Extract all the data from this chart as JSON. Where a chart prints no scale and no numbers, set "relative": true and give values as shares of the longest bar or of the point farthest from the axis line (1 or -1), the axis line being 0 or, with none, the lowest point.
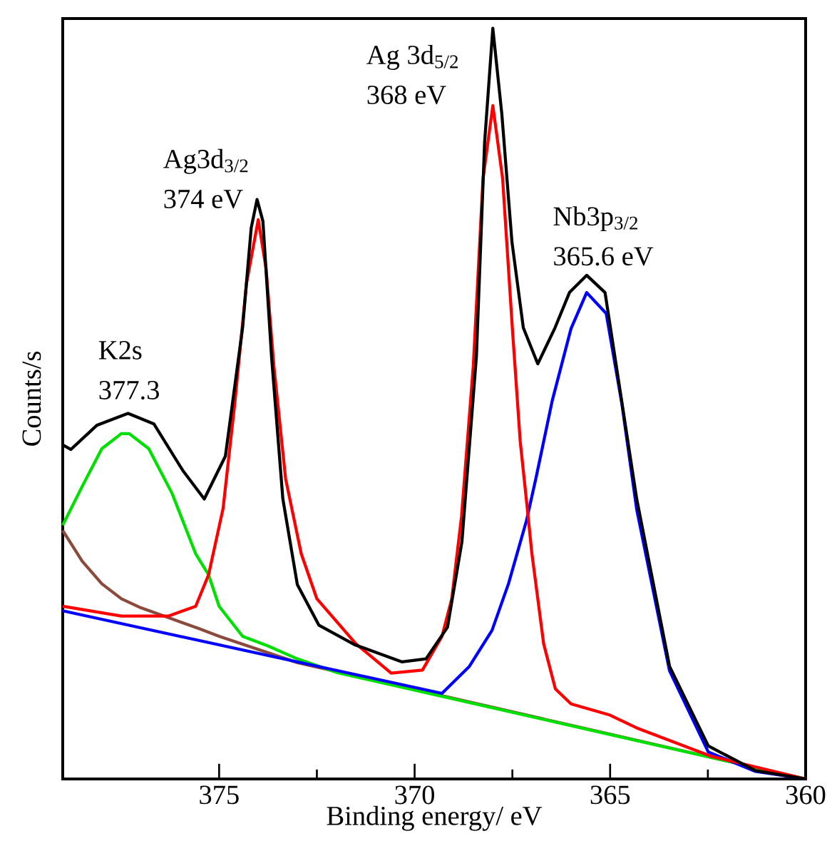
{
  "chart_data": {
    "type": "line",
    "relative": true,
    "xlabel": "Binding energy/ eV",
    "ylabel": "Counts/s",
    "xlim": [
      379,
      360
    ],
    "xticks": [
      375,
      370,
      365,
      360
    ],
    "annotations": [
      {
        "text": "K2s",
        "x": 377.3,
        "y": 0.487
      },
      {
        "text": "377.3",
        "x": 377.3,
        "y": 0.487
      },
      {
        "text": "Ag3d$_{3/2}$",
        "x": 374.0,
        "y": 0.772
      },
      {
        "text": "374 eV",
        "x": 374.0,
        "y": 0.772
      },
      {
        "text": "Ag 3d$_{5/2}$",
        "x": 368.0,
        "y": 1
      },
      {
        "text": "368 eV",
        "x": 368.0,
        "y": 1
      },
      {
        "text": "Nb3p$_{3/2}$",
        "x": 365.6,
        "y": 0.671
      },
      {
        "text": "365.6 eV",
        "x": 365.6,
        "y": 0.671
      }
    ],
    "series": [
      {
        "color": "#8b4a3c",
        "x": [
          379,
          378.5,
          378,
          377.5,
          377,
          376.3,
          375.5,
          375,
          373,
          360
        ],
        "values": [
          0.331,
          0.29,
          0.26,
          0.24,
          0.228,
          0.215,
          0.2,
          0.19,
          0.155,
          0
        ]
      },
      {
        "color": "#00e000",
        "x": [
          379,
          378.5,
          378,
          377.5,
          377.3,
          376.8,
          376.2,
          375.6,
          375.27,
          375.0,
          374.4,
          373.74,
          373.0,
          372,
          360
        ],
        "values": [
          0.338,
          0.39,
          0.44,
          0.46,
          0.46,
          0.44,
          0.38,
          0.3,
          0.272,
          0.23,
          0.19,
          0.177,
          0.16,
          0.142,
          0
        ]
      },
      {
        "color": "#0000ff",
        "x": [
          379,
          369.3,
          368.6,
          368.02,
          367.6,
          367.14,
          366.9,
          366.48,
          366.0,
          365.6,
          365.1,
          364.7,
          364.32,
          363.48,
          362.49,
          361.28,
          360
        ],
        "values": [
          0.224,
          0.114,
          0.15,
          0.198,
          0.26,
          0.344,
          0.4,
          0.504,
          0.6,
          0.648,
          0.62,
          0.5,
          0.359,
          0.144,
          0.036,
          0.01,
          0
        ]
      },
      {
        "color": "#ff0000",
        "x": [
          379,
          377.5,
          376.3,
          375.6,
          375.27,
          374.9,
          374.6,
          374.3,
          374.0,
          373.8,
          373.6,
          373.3,
          372.9,
          372.5,
          371.5,
          370.6,
          369.8,
          369.3,
          369.05,
          368.8,
          368.5,
          368.25,
          368.0,
          367.75,
          367.5,
          367.3,
          367.14,
          367.0,
          366.7,
          366.4,
          366.0,
          365.0,
          364.32,
          362.4,
          360
        ],
        "values": [
          0.23,
          0.217,
          0.217,
          0.23,
          0.272,
          0.36,
          0.5,
          0.66,
          0.745,
          0.68,
          0.55,
          0.4,
          0.3,
          0.24,
          0.18,
          0.141,
          0.145,
          0.19,
          0.24,
          0.35,
          0.55,
          0.8,
          0.897,
          0.8,
          0.6,
          0.45,
          0.371,
          0.3,
          0.18,
          0.12,
          0.1,
          0.085,
          0.068,
          0.03,
          0
        ]
      },
      {
        "color": "#000000",
        "x": [
          379,
          378.79,
          378.13,
          377.33,
          376.67,
          375.93,
          375.38,
          374.84,
          374.4,
          374.18,
          374.03,
          373.88,
          373.66,
          373.37,
          373.0,
          372.45,
          371.54,
          370.33,
          369.71,
          369.16,
          368.79,
          368.42,
          368.21,
          368.0,
          367.77,
          367.51,
          367.22,
          366.85,
          366.41,
          366.04,
          365.6,
          365.13,
          364.32,
          363.48,
          362.49,
          361.28,
          360
        ],
        "values": [
          0.445,
          0.439,
          0.471,
          0.487,
          0.473,
          0.411,
          0.373,
          0.43,
          0.601,
          0.734,
          0.772,
          0.743,
          0.563,
          0.373,
          0.259,
          0.205,
          0.179,
          0.156,
          0.16,
          0.202,
          0.316,
          0.563,
          0.848,
          1,
          0.886,
          0.715,
          0.601,
          0.553,
          0.601,
          0.648,
          0.671,
          0.648,
          0.373,
          0.15,
          0.044,
          0.011,
          0
        ]
      }
    ]
  }
}
